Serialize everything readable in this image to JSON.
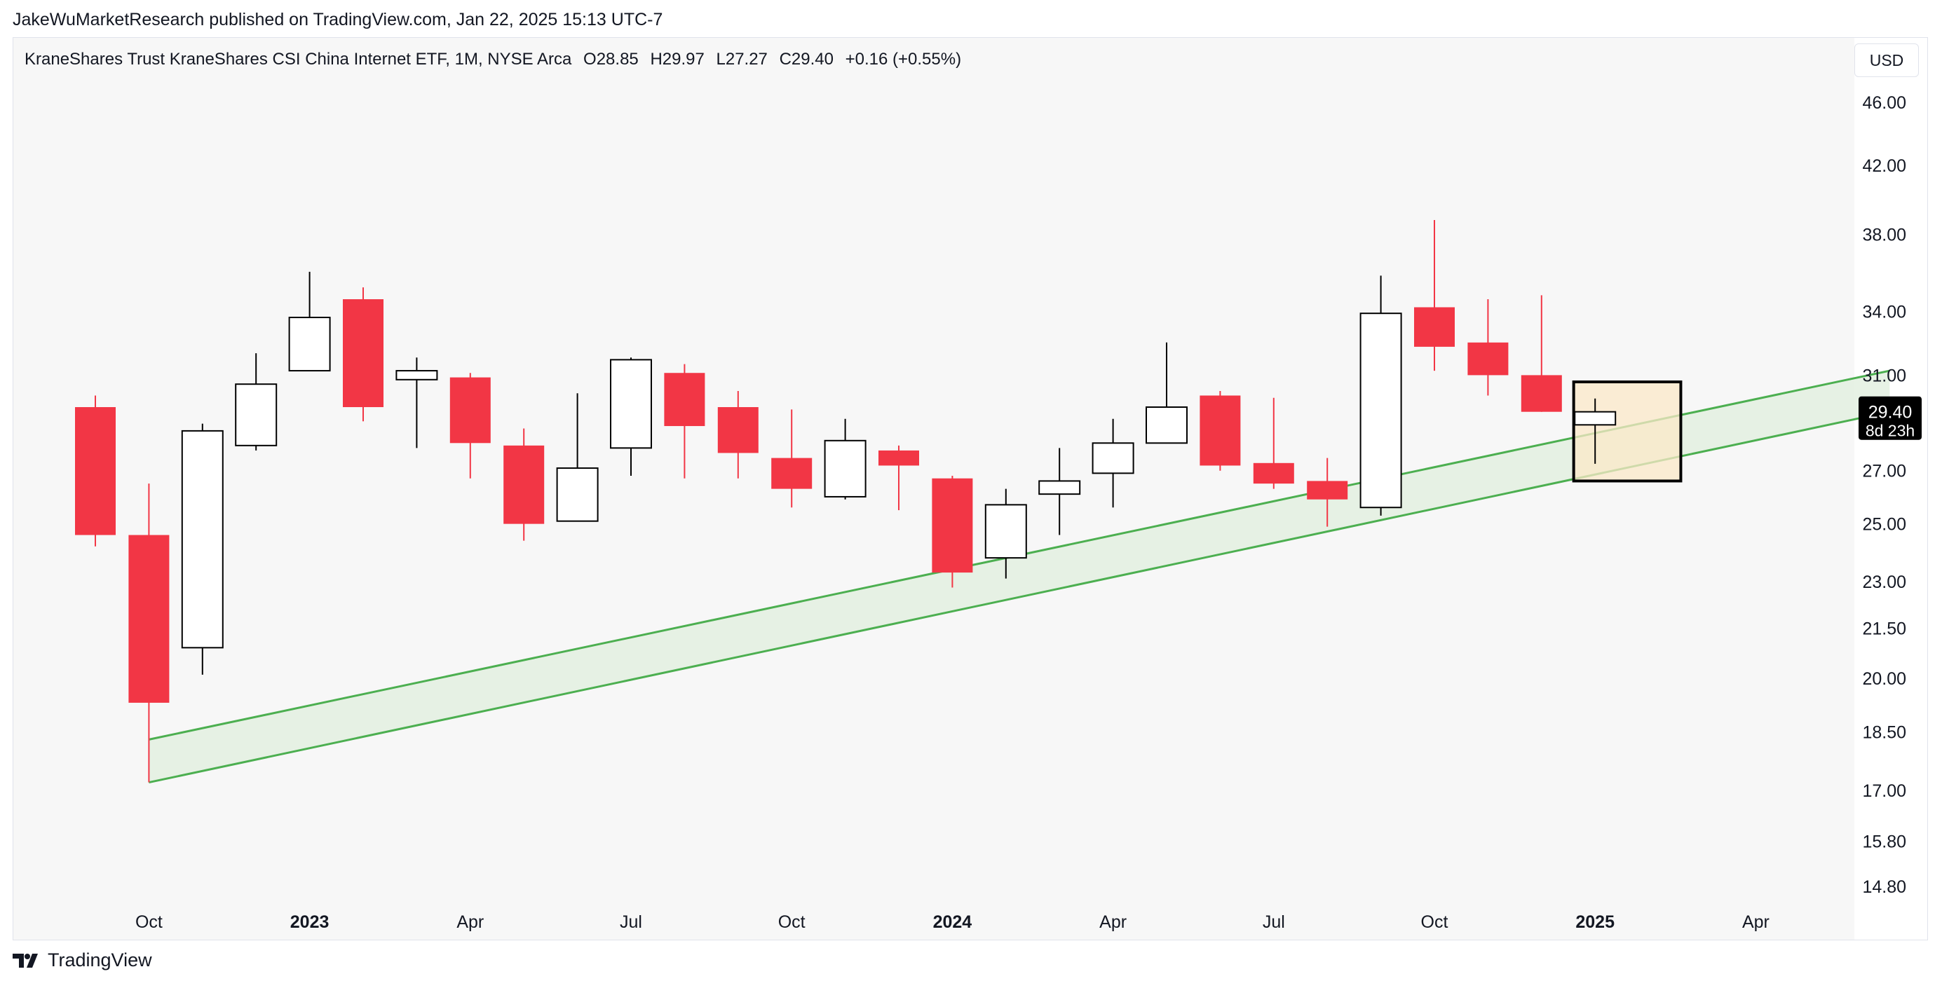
{
  "header": {
    "published": "JakeWuMarketResearch published on TradingView.com, Jan 22, 2025 15:13 UTC-7"
  },
  "symbol": {
    "name": "KraneShares Trust KraneShares CSI China Internet ETF, 1M, NYSE Arca",
    "open": "O28.85",
    "high": "H29.97",
    "low": "L27.27",
    "close": "C29.40",
    "change": "+0.16 (+0.55%)"
  },
  "currency": "USD",
  "brand": "TradingView",
  "colors": {
    "up_fill": "#ffffff",
    "up_border": "#000000",
    "down_fill": "#f23645",
    "channel_line": "#4caf50",
    "channel_fill": "#e3f0e0",
    "highlight_fill": "#fbe8c8",
    "plot_bg": "#f7f7f7"
  },
  "chart_data": {
    "type": "candlestick",
    "title": "KraneShares Trust KraneShares CSI China Internet ETF, 1M, NYSE Arca",
    "y_scale": "log",
    "ylim": [
      13.7,
      50.5
    ],
    "y_ticks": [
      "46.00",
      "42.00",
      "38.00",
      "34.00",
      "31.00",
      "27.00",
      "25.00",
      "23.00",
      "21.50",
      "20.00",
      "18.50",
      "17.00",
      "15.80",
      "14.80"
    ],
    "x_ticks": [
      {
        "label": "Oct",
        "index": 1,
        "bold": false
      },
      {
        "label": "2023",
        "index": 4,
        "bold": true
      },
      {
        "label": "Apr",
        "index": 7,
        "bold": false
      },
      {
        "label": "Jul",
        "index": 10,
        "bold": false
      },
      {
        "label": "Oct",
        "index": 13,
        "bold": false
      },
      {
        "label": "2024",
        "index": 16,
        "bold": true
      },
      {
        "label": "Apr",
        "index": 19,
        "bold": false
      },
      {
        "label": "Jul",
        "index": 22,
        "bold": false
      },
      {
        "label": "Oct",
        "index": 25,
        "bold": false
      },
      {
        "label": "2025",
        "index": 28,
        "bold": true
      },
      {
        "label": "Apr",
        "index": 31,
        "bold": false
      }
    ],
    "candles": [
      {
        "period": "2022-09",
        "o": 29.6,
        "h": 30.1,
        "l": 24.2,
        "c": 24.6
      },
      {
        "period": "2022-10",
        "o": 24.6,
        "h": 26.5,
        "l": 17.2,
        "c": 19.3
      },
      {
        "period": "2022-11",
        "o": 20.9,
        "h": 28.9,
        "l": 20.1,
        "c": 28.6
      },
      {
        "period": "2022-12",
        "o": 28.0,
        "h": 32.0,
        "l": 27.8,
        "c": 30.6
      },
      {
        "period": "2023-01",
        "o": 31.2,
        "h": 36.0,
        "l": 31.2,
        "c": 33.7
      },
      {
        "period": "2023-02",
        "o": 34.6,
        "h": 35.2,
        "l": 29.0,
        "c": 29.6
      },
      {
        "period": "2023-03",
        "o": 30.8,
        "h": 31.8,
        "l": 27.9,
        "c": 31.2
      },
      {
        "period": "2023-04",
        "o": 30.9,
        "h": 31.1,
        "l": 26.7,
        "c": 28.1
      },
      {
        "period": "2023-05",
        "o": 28.0,
        "h": 28.7,
        "l": 24.4,
        "c": 25.0
      },
      {
        "period": "2023-06",
        "o": 25.1,
        "h": 30.2,
        "l": 25.1,
        "c": 27.1
      },
      {
        "period": "2023-07",
        "o": 27.9,
        "h": 31.8,
        "l": 26.8,
        "c": 31.7
      },
      {
        "period": "2023-08",
        "o": 31.1,
        "h": 31.5,
        "l": 26.7,
        "c": 28.8
      },
      {
        "period": "2023-09",
        "o": 29.6,
        "h": 30.3,
        "l": 26.7,
        "c": 27.7
      },
      {
        "period": "2023-10",
        "o": 27.5,
        "h": 29.5,
        "l": 25.6,
        "c": 26.3
      },
      {
        "period": "2023-11",
        "o": 26.0,
        "h": 29.1,
        "l": 25.9,
        "c": 28.2
      },
      {
        "period": "2023-12",
        "o": 27.8,
        "h": 28.0,
        "l": 25.5,
        "c": 27.2
      },
      {
        "period": "2024-01",
        "o": 26.7,
        "h": 26.8,
        "l": 22.8,
        "c": 23.3
      },
      {
        "period": "2024-02",
        "o": 23.8,
        "h": 26.3,
        "l": 23.1,
        "c": 25.7
      },
      {
        "period": "2024-03",
        "o": 26.1,
        "h": 27.9,
        "l": 24.6,
        "c": 26.6
      },
      {
        "period": "2024-04",
        "o": 26.9,
        "h": 29.1,
        "l": 25.6,
        "c": 28.1
      },
      {
        "period": "2024-05",
        "o": 28.1,
        "h": 32.5,
        "l": 28.1,
        "c": 29.6
      },
      {
        "period": "2024-06",
        "o": 30.1,
        "h": 30.3,
        "l": 27.0,
        "c": 27.2
      },
      {
        "period": "2024-07",
        "o": 27.3,
        "h": 30.0,
        "l": 26.3,
        "c": 26.5
      },
      {
        "period": "2024-08",
        "o": 26.6,
        "h": 27.5,
        "l": 24.9,
        "c": 25.9
      },
      {
        "period": "2024-09",
        "o": 25.6,
        "h": 35.8,
        "l": 25.3,
        "c": 33.9
      },
      {
        "period": "2024-10",
        "o": 34.2,
        "h": 38.8,
        "l": 31.2,
        "c": 32.3
      },
      {
        "period": "2024-11",
        "o": 32.5,
        "h": 34.6,
        "l": 30.1,
        "c": 31.0
      },
      {
        "period": "2024-12",
        "o": 31.0,
        "h": 34.8,
        "l": 29.4,
        "c": 29.4
      },
      {
        "period": "2025-01",
        "o": 28.85,
        "h": 29.97,
        "l": 27.27,
        "c": 29.4
      }
    ],
    "channel": {
      "upper": [
        {
          "index": 1,
          "value": 18.3
        },
        {
          "index": 33.5,
          "value": 31.2
        }
      ],
      "lower": [
        {
          "index": 1,
          "value": 17.2
        },
        {
          "index": 33.5,
          "value": 29.4
        }
      ]
    },
    "highlight_box": {
      "index_from": 27.6,
      "index_to": 29.6,
      "top": 30.7,
      "bottom": 26.6
    },
    "last_price": {
      "value": "29.40",
      "countdown": "8d 23h"
    }
  }
}
